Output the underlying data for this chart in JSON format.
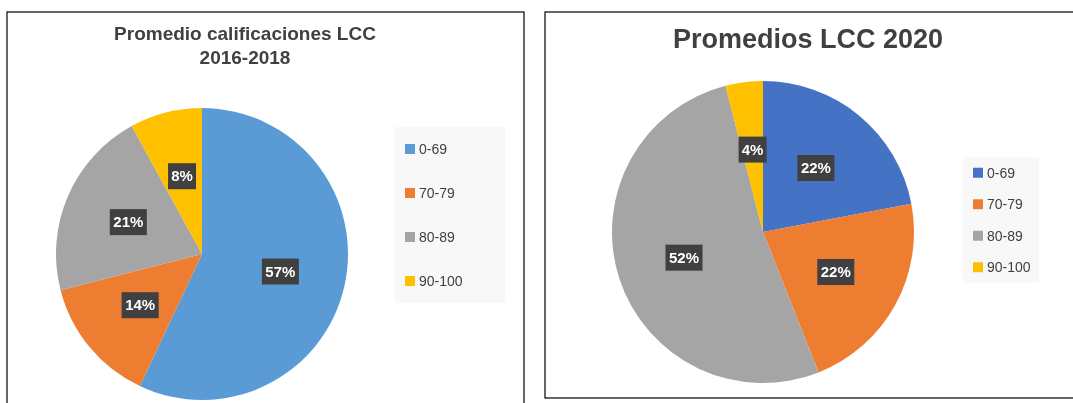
{
  "chart_data": [
    {
      "type": "pie",
      "title": "Promedio calificaciones LCC\n2016-2018",
      "categories": [
        "0-69",
        "70-79",
        "80-89",
        "90-100"
      ],
      "values": [
        57,
        14,
        21,
        8
      ],
      "colors": [
        "#5b9bd5",
        "#ed7d31",
        "#a5a5a5",
        "#ffc000"
      ],
      "value_labels": [
        "57%",
        "14%",
        "21%",
        "8%"
      ],
      "legend": "right"
    },
    {
      "type": "pie",
      "title": "Promedios LCC 2020",
      "categories": [
        "0-69",
        "70-79",
        "80-89",
        "90-100"
      ],
      "values": [
        22,
        22,
        52,
        4
      ],
      "colors": [
        "#4472c4",
        "#ed7d31",
        "#a5a5a5",
        "#ffc000"
      ],
      "value_labels": [
        "22%",
        "22%",
        "52%",
        "4%"
      ],
      "legend": "right"
    }
  ]
}
